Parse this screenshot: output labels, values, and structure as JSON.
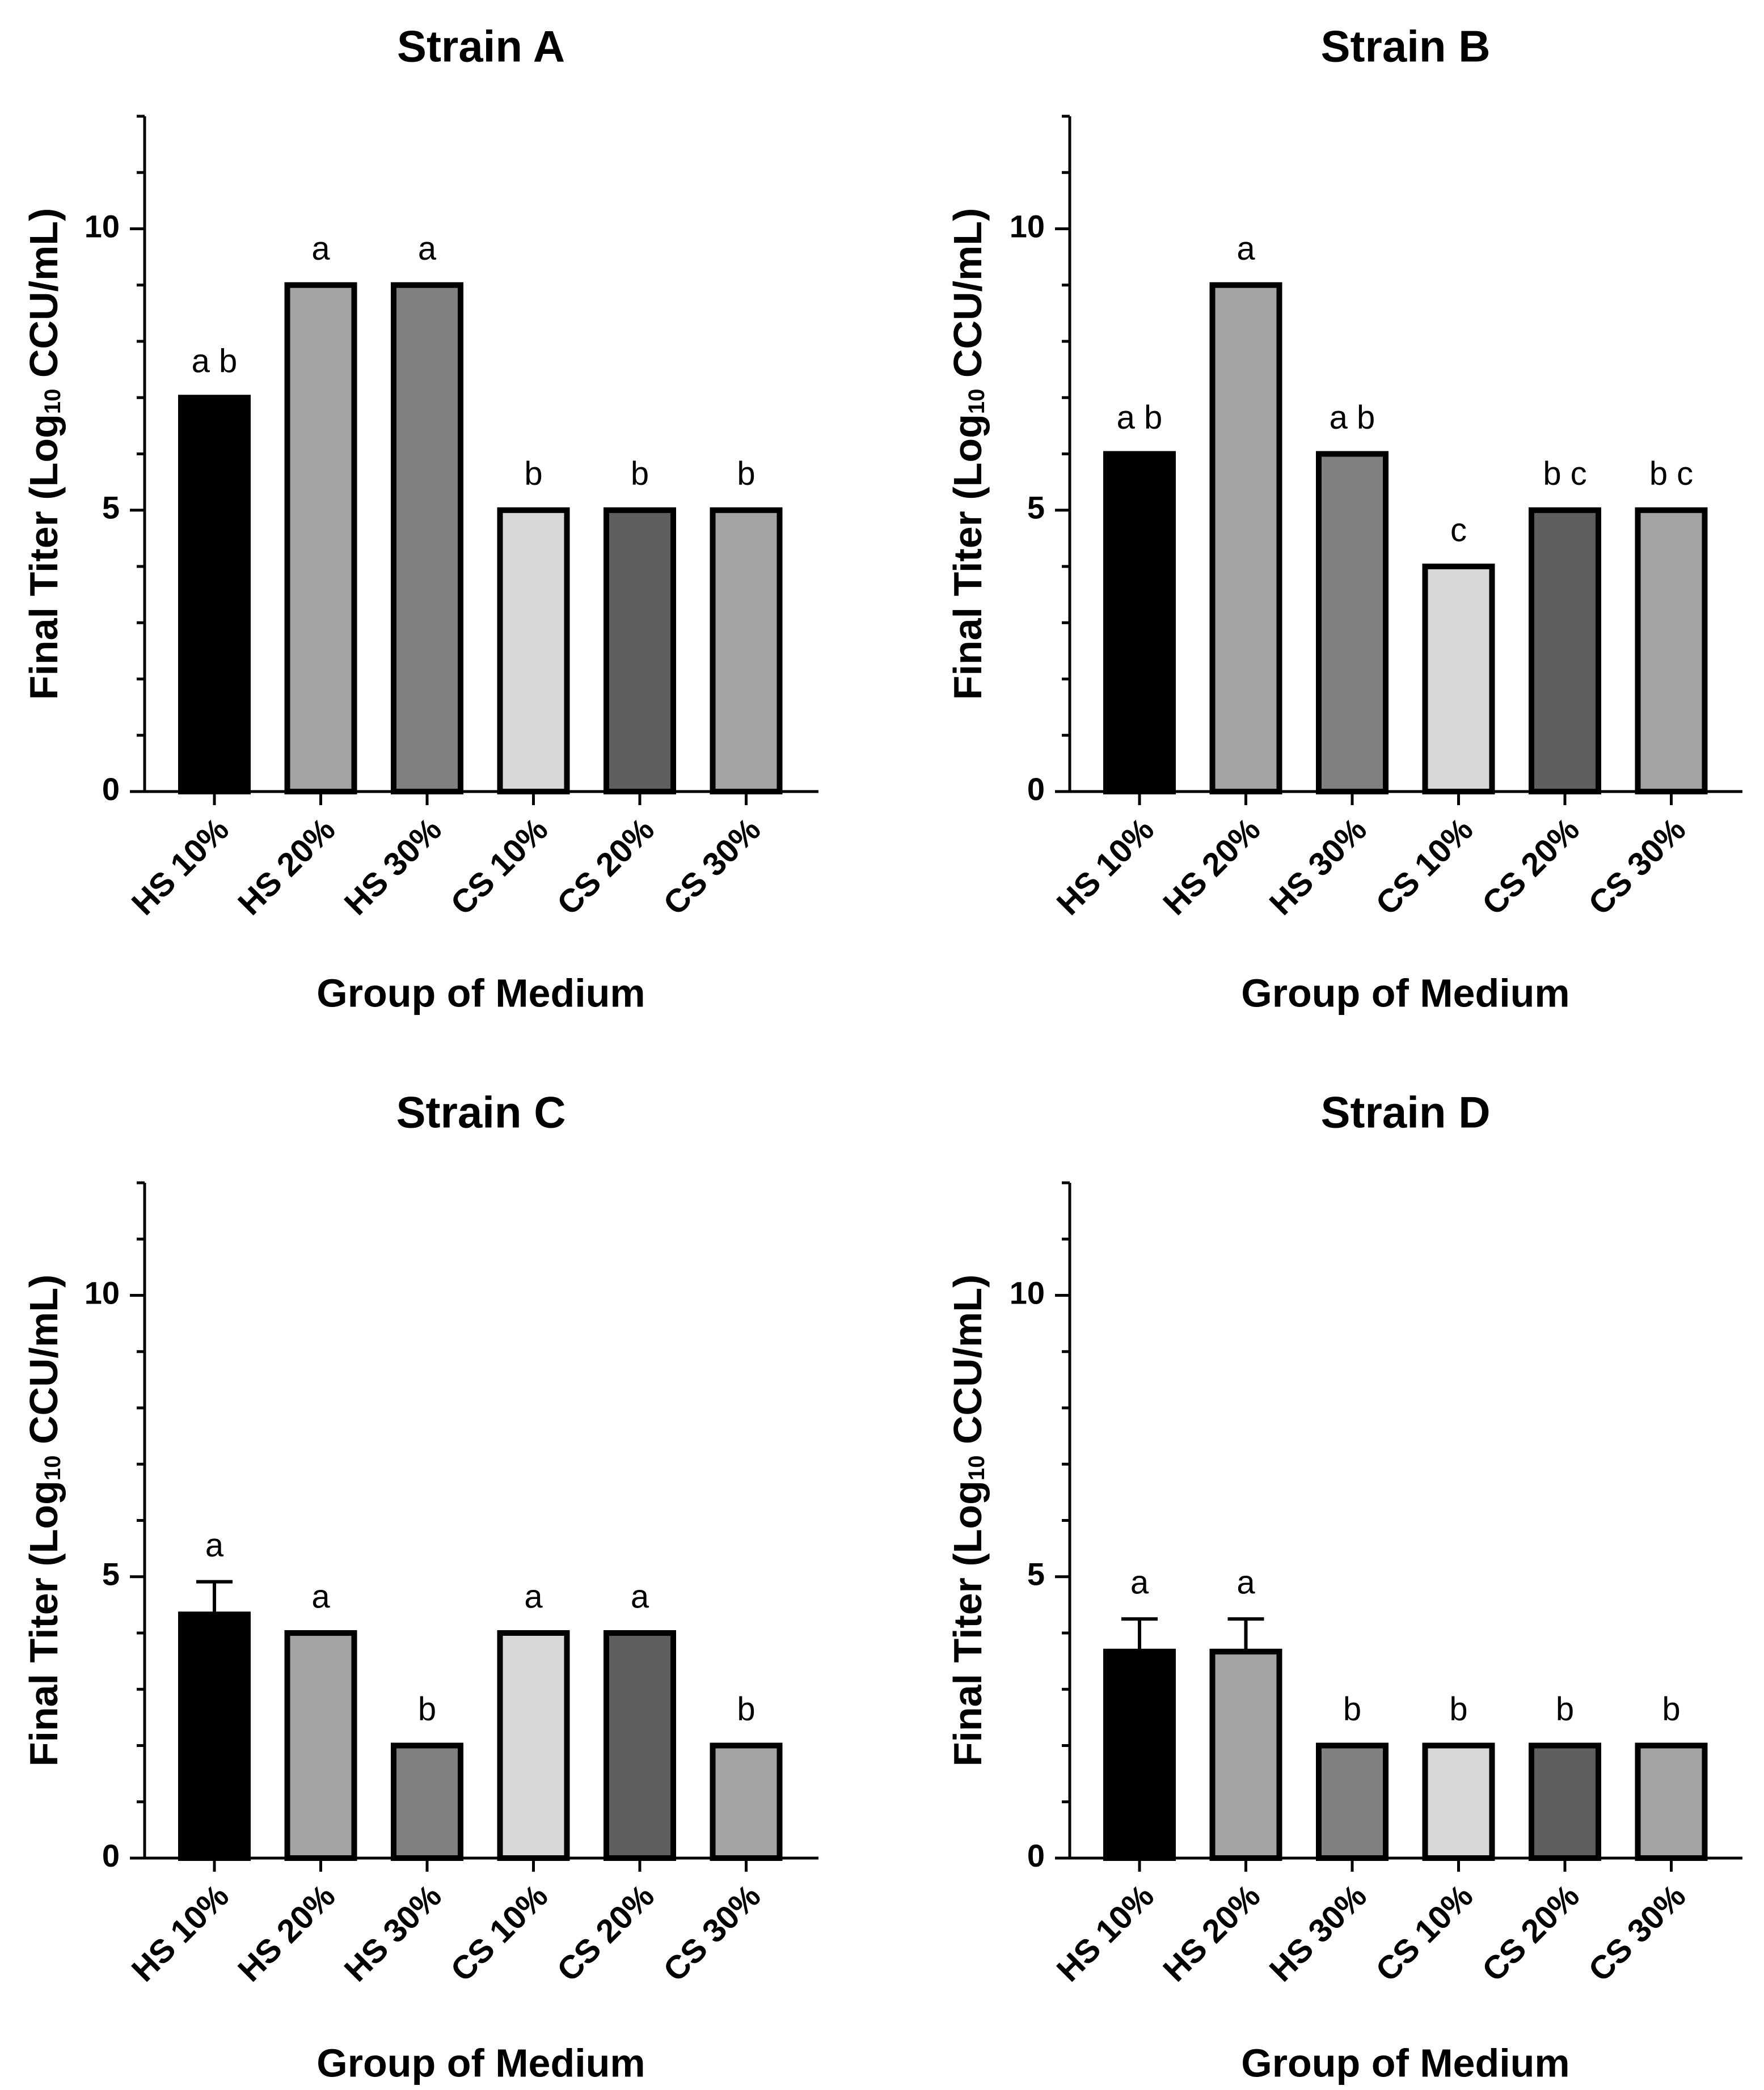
{
  "figure": {
    "colors": {
      "HS 10%": "#000000",
      "HS 20%": "#a3a3a6",
      "HS 30%": "#808080",
      "CS 10%": "#d8d8d8",
      "CS 20%": "#5f5f5f",
      "CS 30%": "#a3a3a6"
    },
    "bar_outline": "#000000"
  },
  "chart_data": [
    {
      "type": "bar",
      "title": "Strain A",
      "xlabel": "Group of Medium",
      "ylabel_main": "Final Titer (Log",
      "ylabel_sub": "10",
      "ylabel_rest": " CCU/mL)",
      "ylim": [
        0,
        12
      ],
      "yticks": [
        0,
        5,
        10
      ],
      "categories": [
        "HS 10%",
        "HS 20%",
        "HS 30%",
        "CS 10%",
        "CS 20%",
        "CS 30%"
      ],
      "values": [
        7,
        9,
        9,
        5,
        5,
        5
      ],
      "errors": [
        0,
        0,
        0,
        0,
        0,
        0
      ],
      "labels": [
        "a b",
        "a",
        "a",
        "b",
        "b",
        "b"
      ]
    },
    {
      "type": "bar",
      "title": "Strain B",
      "xlabel": "Group of Medium",
      "ylabel_main": "Final Titer (Log",
      "ylabel_sub": "10",
      "ylabel_rest": " CCU/mL)",
      "ylim": [
        0,
        12
      ],
      "yticks": [
        0,
        5,
        10
      ],
      "categories": [
        "HS 10%",
        "HS 20%",
        "HS 30%",
        "CS 10%",
        "CS 20%",
        "CS 30%"
      ],
      "values": [
        6,
        9,
        6,
        4,
        5,
        5
      ],
      "errors": [
        0,
        0,
        0,
        0,
        0,
        0
      ],
      "labels": [
        "a b",
        "a",
        "a b",
        "c",
        "b c",
        "b c"
      ]
    },
    {
      "type": "bar",
      "title": "Strain C",
      "xlabel": "Group of Medium",
      "ylabel_main": "Final Titer (Log",
      "ylabel_sub": "10",
      "ylabel_rest": " CCU/mL)",
      "ylim": [
        0,
        12
      ],
      "yticks": [
        0,
        5,
        10
      ],
      "categories": [
        "HS 10%",
        "HS 20%",
        "HS 30%",
        "CS 10%",
        "CS 20%",
        "CS 30%"
      ],
      "values": [
        4.33,
        4,
        2,
        4,
        4,
        2
      ],
      "errors": [
        0.58,
        0,
        0,
        0,
        0,
        0
      ],
      "labels": [
        "a",
        "a",
        "b",
        "a",
        "a",
        "b"
      ]
    },
    {
      "type": "bar",
      "title": "Strain D",
      "xlabel": "Group of Medium",
      "ylabel_main": "Final Titer (Log",
      "ylabel_sub": "10",
      "ylabel_rest": " CCU/mL)",
      "ylim": [
        0,
        12
      ],
      "yticks": [
        0,
        5,
        10
      ],
      "categories": [
        "HS 10%",
        "HS 20%",
        "HS 30%",
        "CS 10%",
        "CS 20%",
        "CS 30%"
      ],
      "values": [
        3.67,
        3.67,
        2,
        2,
        2,
        2
      ],
      "errors": [
        0.58,
        0.58,
        0,
        0,
        0,
        0
      ],
      "labels": [
        "a",
        "a",
        "b",
        "b",
        "b",
        "b"
      ]
    }
  ]
}
